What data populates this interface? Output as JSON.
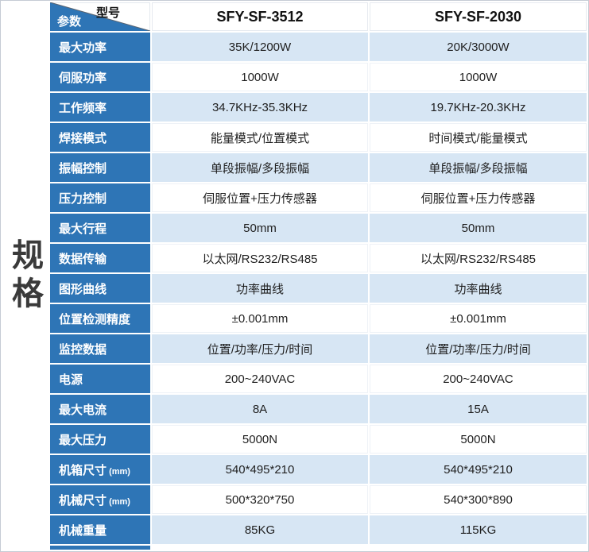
{
  "side_title": "规格",
  "colors": {
    "accent_blue": "#2e75b6",
    "row_tint": "#d7e6f4",
    "page_border": "#c6cbd4",
    "text_dark": "#1f1f1f"
  },
  "header": {
    "corner_top": "型号",
    "corner_bottom": "参数",
    "models": [
      "SFY-SF-3512",
      "SFY-SF-2030"
    ]
  },
  "table": {
    "rows": [
      {
        "label": "最大功率",
        "values": [
          "35K/1200W",
          "20K/3000W"
        ]
      },
      {
        "label": "伺服功率",
        "values": [
          "1000W",
          "1000W"
        ]
      },
      {
        "label": "工作频率",
        "values": [
          "34.7KHz-35.3KHz",
          "19.7KHz-20.3KHz"
        ]
      },
      {
        "label": "焊接模式",
        "values": [
          "能量模式/位置模式",
          "时间模式/能量模式"
        ]
      },
      {
        "label": "振幅控制",
        "values": [
          "单段振幅/多段振幅",
          "单段振幅/多段振幅"
        ]
      },
      {
        "label": "压力控制",
        "values": [
          "伺服位置+压力传感器",
          "伺服位置+压力传感器"
        ]
      },
      {
        "label": "最大行程",
        "values": [
          "50mm",
          "50mm"
        ]
      },
      {
        "label": "数据传输",
        "values": [
          "以太网/RS232/RS485",
          "以太网/RS232/RS485"
        ]
      },
      {
        "label": "图形曲线",
        "values": [
          "功率曲线",
          "功率曲线"
        ]
      },
      {
        "label": "位置检测精度",
        "values": [
          "±0.001mm",
          "±0.001mm"
        ]
      },
      {
        "label": "监控数据",
        "values": [
          "位置/功率/压力/时间",
          "位置/功率/压力/时间"
        ]
      },
      {
        "label": "电源",
        "values": [
          "200~240VAC",
          "200~240VAC"
        ]
      },
      {
        "label": "最大电流",
        "values": [
          "8A",
          "15A"
        ]
      },
      {
        "label": "最大压力",
        "values": [
          "5000N",
          "5000N"
        ]
      },
      {
        "label": "机箱尺寸",
        "unit": "(mm)",
        "values": [
          "540*495*210",
          "540*495*210"
        ]
      },
      {
        "label": "机械尺寸",
        "unit": "(mm)",
        "values": [
          "500*320*750",
          "540*300*890"
        ]
      },
      {
        "label": "机械重量",
        "values": [
          "85KG",
          "115KG"
        ]
      }
    ]
  }
}
